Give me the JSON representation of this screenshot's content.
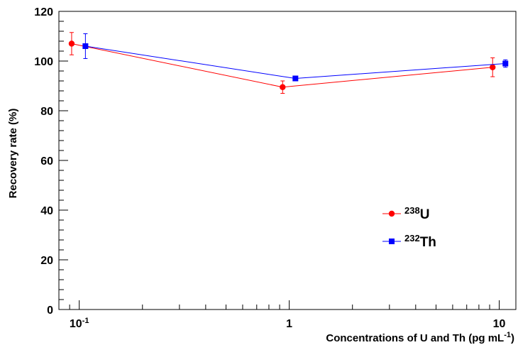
{
  "chart_data": {
    "type": "scatter",
    "xscale": "log",
    "xlim": [
      0.08,
      12
    ],
    "ylim": [
      0,
      120
    ],
    "xlabel_text": "Concentrations of U and Th (pg mL",
    "xlabel_sup": "-1",
    "xlabel_end": ")",
    "ylabel": "Recovery rate (%)",
    "xtick_labels": [
      {
        "value": 0.1,
        "base": "10",
        "sup": "-1"
      },
      {
        "value": 1,
        "base": "1",
        "sup": ""
      },
      {
        "value": 10,
        "base": "10",
        "sup": ""
      }
    ],
    "yticks": [
      0,
      20,
      40,
      60,
      80,
      100,
      120
    ],
    "legend_position": "middle-right",
    "series": [
      {
        "name_sup": "238",
        "name_base": "U",
        "color": "#ff0000",
        "marker": "circle",
        "points": [
          {
            "x": 0.092,
            "y": 107,
            "err": 4.5
          },
          {
            "x": 0.93,
            "y": 89.5,
            "err": 2.5
          },
          {
            "x": 9.3,
            "y": 97.5,
            "err": 3.8
          }
        ]
      },
      {
        "name_sup": "232",
        "name_base": "Th",
        "color": "#0000ff",
        "marker": "square",
        "points": [
          {
            "x": 0.107,
            "y": 106,
            "err": 5.0
          },
          {
            "x": 1.07,
            "y": 93,
            "err": 0.8
          },
          {
            "x": 10.7,
            "y": 99,
            "err": 1.5
          }
        ]
      }
    ]
  }
}
